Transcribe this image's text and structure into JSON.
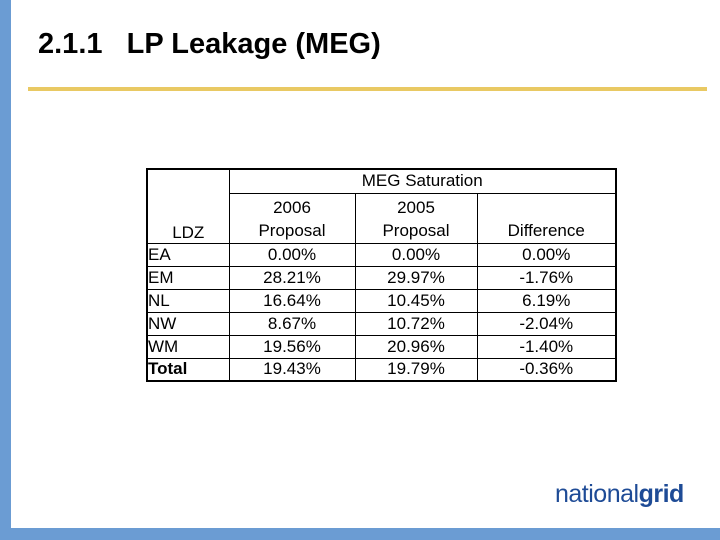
{
  "slide": {
    "title": "2.1.1   LP Leakage (MEG)"
  },
  "table": {
    "group_header": "MEG Saturation",
    "row_header": "LDZ",
    "col_headers": {
      "proposal_2006": "2006\nProposal",
      "proposal_2005": "2005\nProposal",
      "difference": "Difference"
    },
    "rows": [
      {
        "ldz": "EA",
        "p2006": "0.00%",
        "p2005": "0.00%",
        "diff": "0.00%"
      },
      {
        "ldz": "EM",
        "p2006": "28.21%",
        "p2005": "29.97%",
        "diff": "-1.76%"
      },
      {
        "ldz": "NL",
        "p2006": "16.64%",
        "p2005": "10.45%",
        "diff": "6.19%"
      },
      {
        "ldz": "NW",
        "p2006": "8.67%",
        "p2005": "10.72%",
        "diff": "-2.04%"
      },
      {
        "ldz": "WM",
        "p2006": "19.56%",
        "p2005": "20.96%",
        "diff": "-1.40%"
      },
      {
        "ldz": "Total",
        "p2006": "19.43%",
        "p2005": "19.79%",
        "diff": "-0.36%"
      }
    ]
  },
  "logo": {
    "part1": "national",
    "part2": "grid"
  },
  "colors": {
    "accent_blue": "#6B9CD3",
    "underline_gold": "#E9C963",
    "logo_navy": "#1E4B96"
  }
}
